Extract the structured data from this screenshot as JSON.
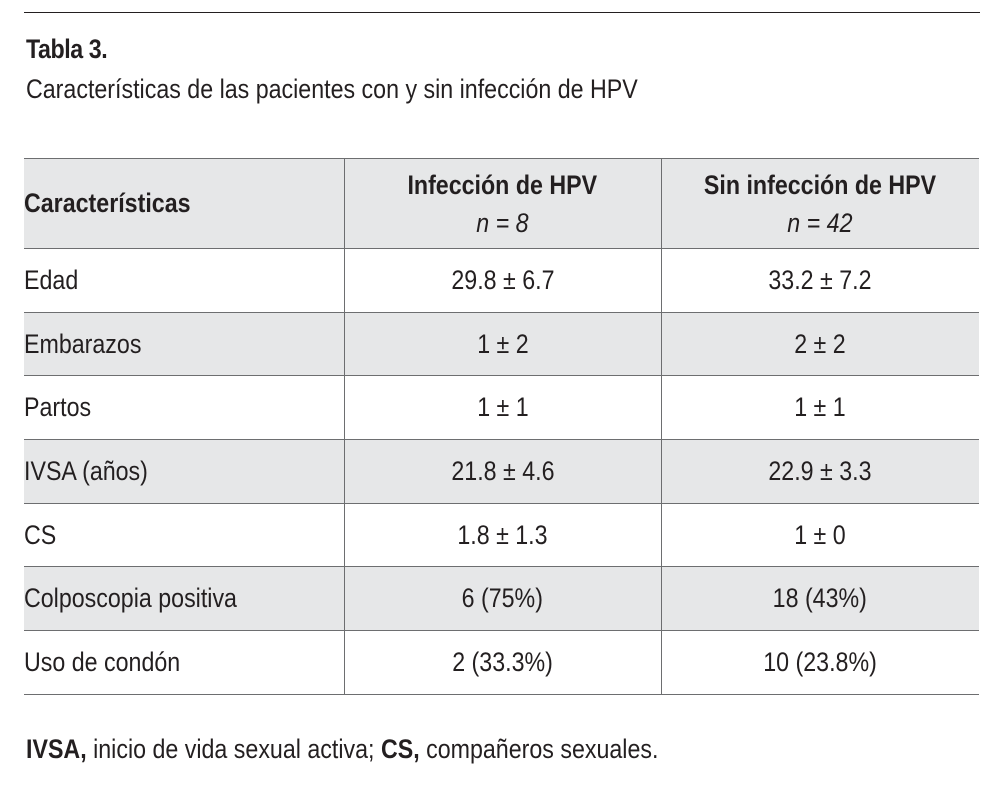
{
  "table": {
    "title": "Tabla 3.",
    "subtitle": "Características de las pacientes con y sin infección de HPV",
    "headers": [
      {
        "label": "Características",
        "n": ""
      },
      {
        "label": "Infección de HPV",
        "n": "n = 8"
      },
      {
        "label": "Sin infección de HPV",
        "n": "n = 42"
      }
    ],
    "rows": [
      {
        "label": "Edad",
        "hpv": "29.8 ± 6.7",
        "no_hpv": "33.2 ± 7.2"
      },
      {
        "label": "Embarazos",
        "hpv": "1 ± 2",
        "no_hpv": "2 ± 2"
      },
      {
        "label": "Partos",
        "hpv": "1 ± 1",
        "no_hpv": "1 ± 1"
      },
      {
        "label": "IVSA (años)",
        "hpv": "21.8 ± 4.6",
        "no_hpv": "22.9 ± 3.3"
      },
      {
        "label": "CS",
        "hpv": "1.8 ± 1.3",
        "no_hpv": "1 ± 0"
      },
      {
        "label": "Colposcopia positiva",
        "hpv": "6 (75%)",
        "no_hpv": "18 (43%)"
      },
      {
        "label": "Uso de condón",
        "hpv": "2 (33.3%)",
        "no_hpv": "10 (23.8%)"
      }
    ],
    "footnote": {
      "abbr1": "IVSA,",
      "def1": " inicio de vida sexual activa; ",
      "abbr2": "CS,",
      "def2": " compañeros sexuales."
    }
  },
  "colors": {
    "text": "#231f20",
    "rule": "#6d6e70",
    "row_shading": "#e6e7e8"
  }
}
